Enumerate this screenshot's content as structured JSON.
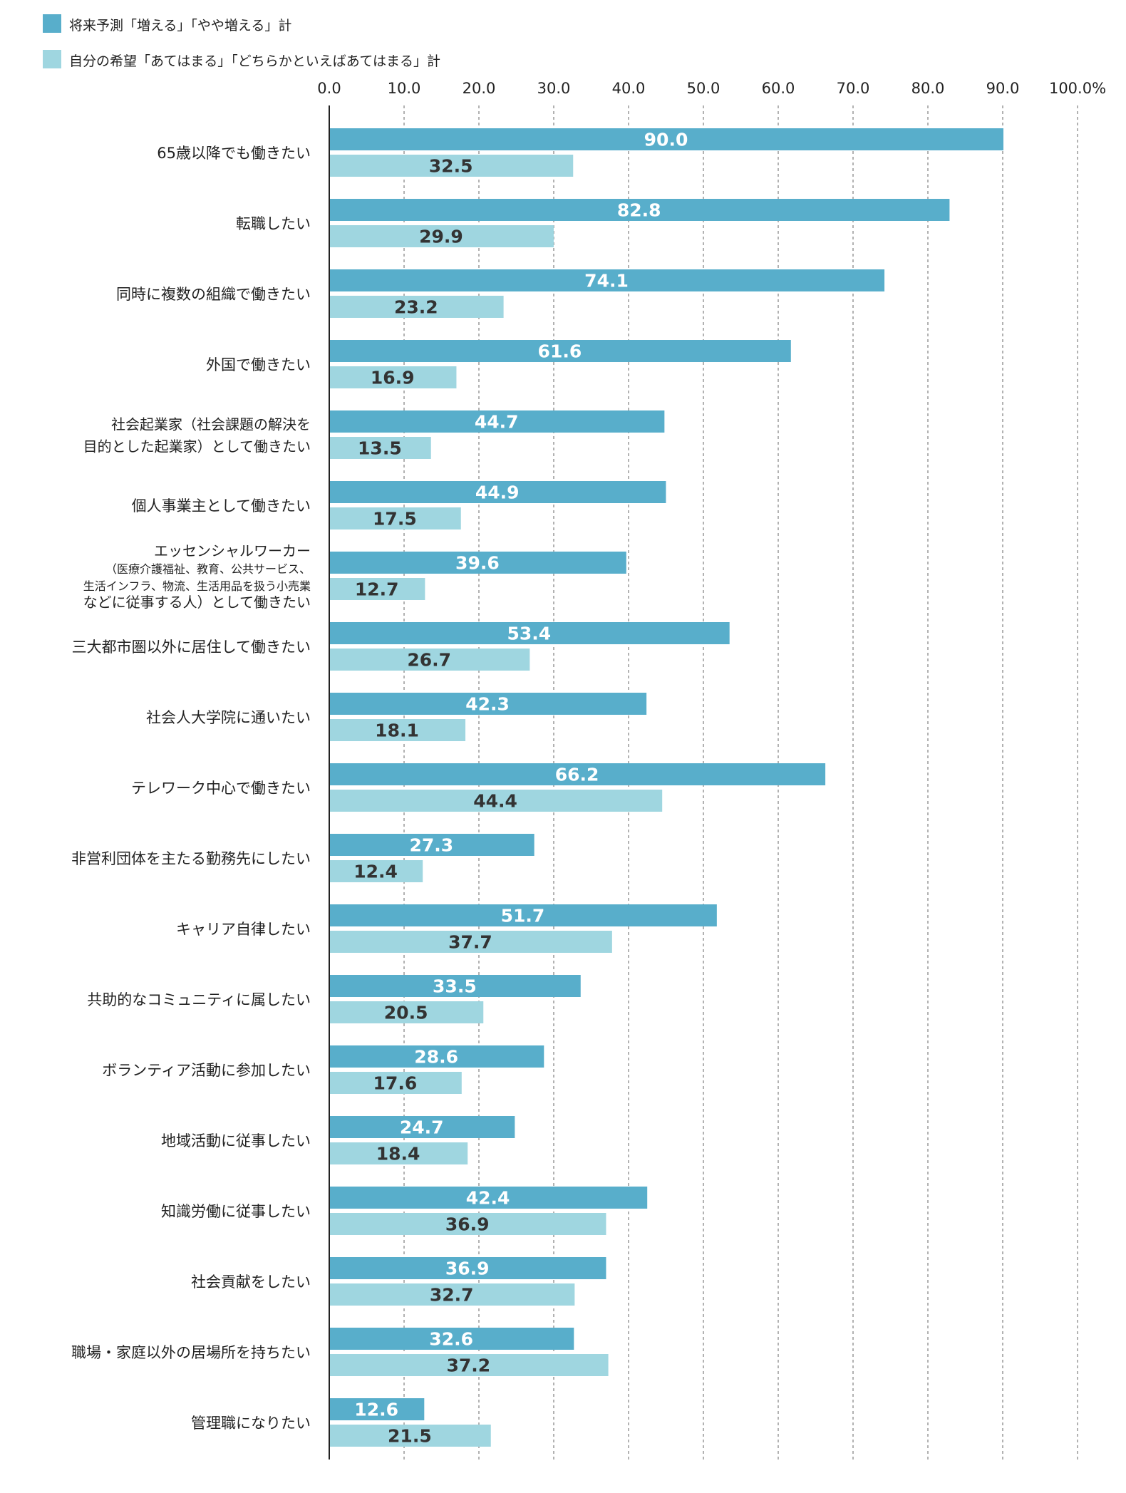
{
  "colors": {
    "forecast": "#58aecb",
    "hope": "#9fd6e0",
    "forecast_label": "#ffffff",
    "hope_label": "#333333",
    "axis": "#222222",
    "grid": "#888888"
  },
  "legend": [
    {
      "name": "将来予測「増える」「やや増える」計",
      "color_key": "forecast"
    },
    {
      "name": "自分の希望「あてはまる」「どちらかといえばあてはまる」計",
      "color_key": "hope"
    }
  ],
  "chart_data": {
    "type": "bar",
    "orientation": "horizontal",
    "title": "",
    "xlabel": "",
    "ylabel": "",
    "xlim": [
      0,
      100
    ],
    "grid": true,
    "legend_position": "top-left",
    "x_ticks": [
      "0.0",
      "10.0",
      "20.0",
      "30.0",
      "40.0",
      "50.0",
      "60.0",
      "70.0",
      "80.0",
      "90.0",
      "100.0%"
    ],
    "categories": [
      [
        "65歳以降でも働きたい"
      ],
      [
        "転職したい"
      ],
      [
        "同時に複数の組織で働きたい"
      ],
      [
        "外国で働きたい"
      ],
      [
        "社会起業家（社会課題の解決を",
        "目的とした起業家）として働きたい"
      ],
      [
        "個人事業主として働きたい"
      ],
      [
        "エッセンシャルワーカー",
        "（医療介護福祉、教育、公共サービス、",
        "生活インフラ、物流、生活用品を扱う小売業",
        "などに従事する人）として働きたい"
      ],
      [
        "三大都市圏以外に居住して働きたい"
      ],
      [
        "社会人大学院に通いたい"
      ],
      [
        "テレワーク中心で働きたい"
      ],
      [
        "非営利団体を主たる勤務先にしたい"
      ],
      [
        "キャリア自律したい"
      ],
      [
        "共助的なコミュニティに属したい"
      ],
      [
        "ボランティア活動に参加したい"
      ],
      [
        "地域活動に従事したい"
      ],
      [
        "知識労働に従事したい"
      ],
      [
        "社会貢献をしたい"
      ],
      [
        "職場・家庭以外の居場所を持ちたい"
      ],
      [
        "管理職になりたい"
      ]
    ],
    "series": [
      {
        "name": "将来予測「増える」「やや増える」計",
        "values": [
          90.0,
          82.8,
          74.1,
          61.6,
          44.7,
          44.9,
          39.6,
          53.4,
          42.3,
          66.2,
          27.3,
          51.7,
          33.5,
          28.6,
          24.7,
          42.4,
          36.9,
          32.6,
          12.6
        ],
        "labels": [
          "90.0",
          "82.8",
          "74.1",
          "61.6",
          "44.7",
          "44.9",
          "39.6",
          "53.4",
          "42.3",
          "66.2",
          "27.3",
          "51.7",
          "33.5",
          "28.6",
          "24.7",
          "42.4",
          "36.9",
          "32.6",
          "12.6"
        ]
      },
      {
        "name": "自分の希望「あてはまる」「どちらかといえばあてはまる」計",
        "values": [
          32.5,
          29.9,
          23.2,
          16.9,
          13.5,
          17.5,
          12.7,
          26.7,
          18.1,
          44.4,
          12.4,
          37.7,
          20.5,
          17.6,
          18.4,
          36.9,
          32.7,
          37.2,
          21.5
        ],
        "labels": [
          "32.5",
          "29.9",
          "23.2",
          "16.9",
          "13.5",
          "17.5",
          "12.7",
          "26.7",
          "18.1",
          "44.4",
          "12.4",
          "37.7",
          "20.5",
          "17.6",
          "18.4",
          "36.9",
          "32.7",
          "37.2",
          "21.5"
        ]
      }
    ]
  }
}
